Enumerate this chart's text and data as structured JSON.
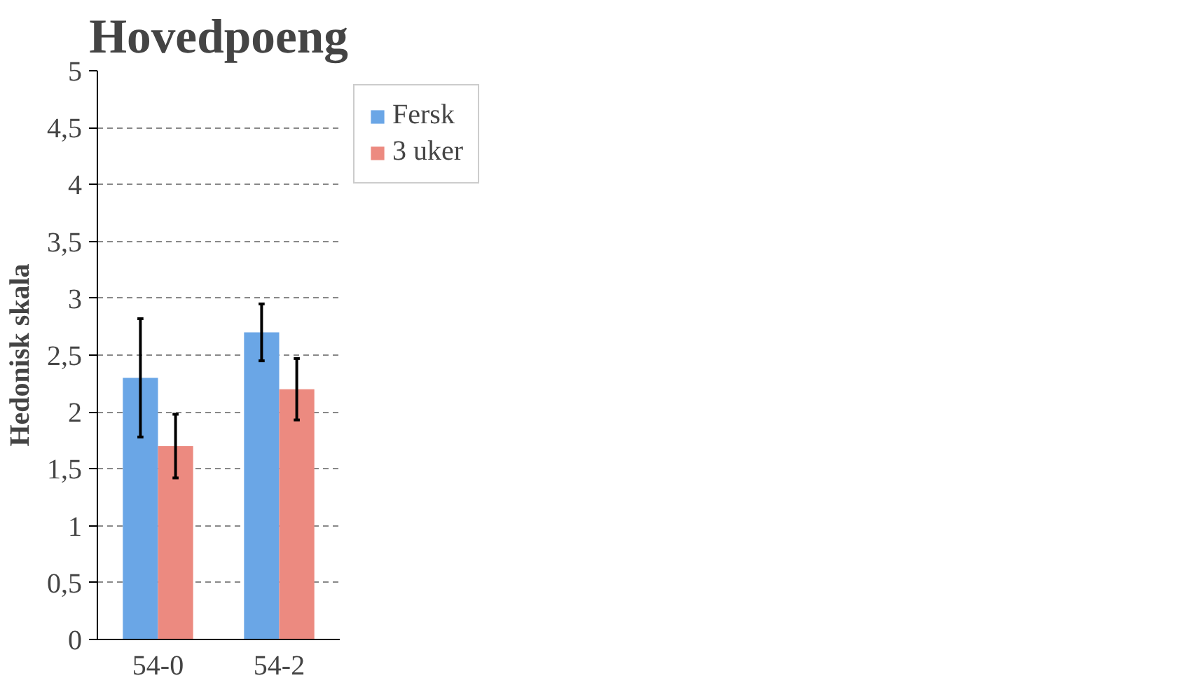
{
  "chart_data": {
    "type": "bar",
    "title": "Hovedpoeng",
    "ylabel": "Hedonisk skala",
    "categories": [
      "54-0",
      "54-2"
    ],
    "series": [
      {
        "name": "Fersk",
        "color": "#6aa6e6",
        "values": [
          2.3,
          2.7
        ],
        "errors": [
          0.52,
          0.25
        ]
      },
      {
        "name": "3 uker",
        "color": "#ec8a80",
        "values": [
          1.7,
          2.2
        ],
        "errors": [
          0.28,
          0.27
        ]
      }
    ],
    "ylim": [
      0,
      5
    ],
    "yticks": [
      0,
      {
        "value": 0.5,
        "label": "0,5"
      },
      1,
      {
        "value": 1.5,
        "label": "1,5"
      },
      2,
      {
        "value": 2.5,
        "label": "2,5"
      },
      3,
      {
        "value": 3.5,
        "label": "3,5"
      },
      4,
      {
        "value": 4.5,
        "label": "4,5"
      },
      5
    ],
    "grid": "y",
    "legend": "top right"
  }
}
